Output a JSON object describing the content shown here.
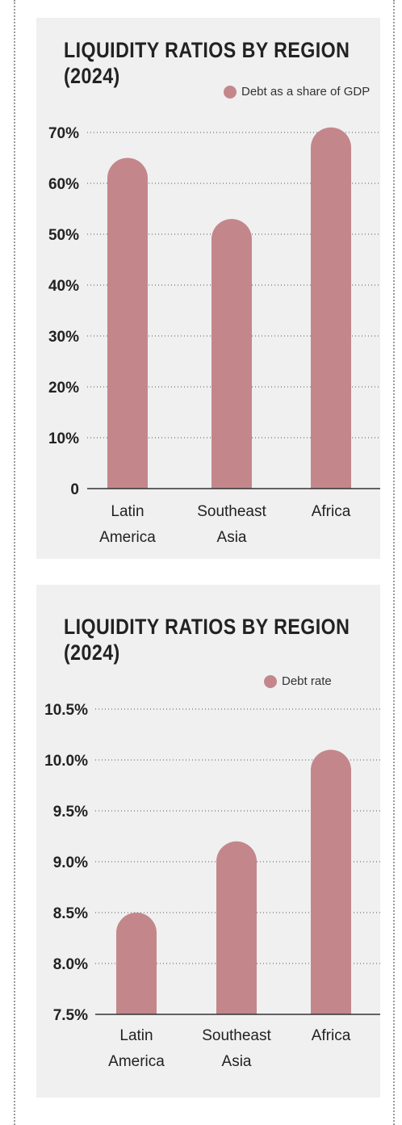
{
  "chart_data": [
    {
      "type": "bar",
      "title": "LIQUIDITY RATIOS BY REGION (2024)",
      "title_lines": [
        "LIQUIDITY RATIOS BY REGION",
        "(2024)"
      ],
      "categories": [
        "Latin America",
        "Southeast Asia",
        "Africa"
      ],
      "category_lines": [
        [
          "Latin",
          "America"
        ],
        [
          "Southeast",
          "Asia"
        ],
        [
          "Africa"
        ]
      ],
      "series": [
        {
          "name": "Debt as a share of GDP",
          "values": [
            65,
            53,
            71
          ]
        }
      ],
      "ylim": [
        0,
        70
      ],
      "yticks": [
        0,
        10,
        20,
        30,
        40,
        50,
        60,
        70
      ],
      "ytick_labels": [
        "0",
        "10%",
        "20%",
        "30%",
        "40%",
        "50%",
        "60%",
        "70%"
      ],
      "grid": true,
      "legend_position": "top-right",
      "color": "#c3878b"
    },
    {
      "type": "bar",
      "title": "LIQUIDITY RATIOS BY REGION (2024)",
      "title_lines": [
        "LIQUIDITY RATIOS BY REGION",
        "(2024)"
      ],
      "categories": [
        "Latin America",
        "Southeast Asia",
        "Africa"
      ],
      "category_lines": [
        [
          "Latin",
          "America"
        ],
        [
          "Southeast",
          "Asia"
        ],
        [
          "Africa"
        ]
      ],
      "series": [
        {
          "name": "Debt rate",
          "values": [
            8.5,
            9.2,
            10.1
          ]
        }
      ],
      "ylim": [
        7.5,
        10.5
      ],
      "yticks": [
        7.5,
        8.0,
        8.5,
        9.0,
        9.5,
        10.0,
        10.5
      ],
      "ytick_labels": [
        "7.5%",
        "8.0%",
        "8.5%",
        "9.0%",
        "9.5%",
        "10.0%",
        "10.5%"
      ],
      "grid": true,
      "legend_position": "top-right",
      "color": "#c3878b"
    }
  ]
}
